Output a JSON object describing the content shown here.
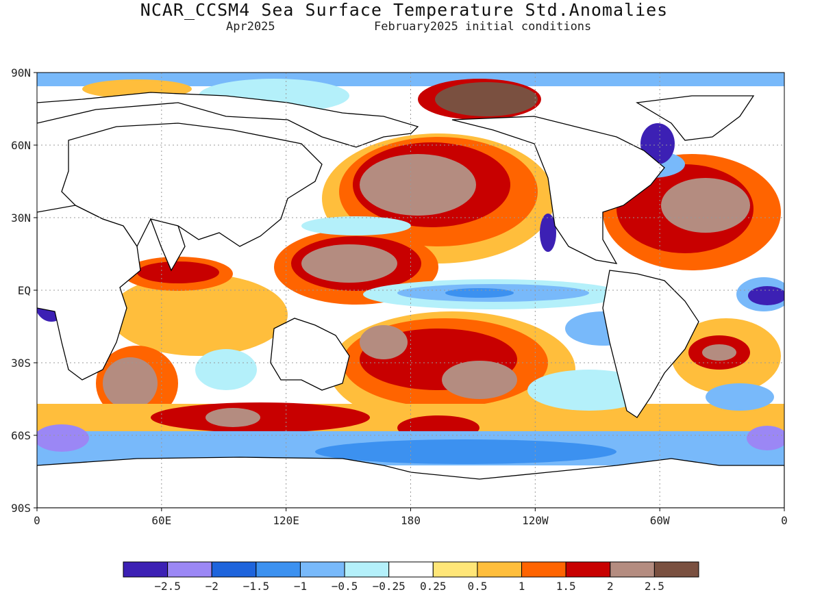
{
  "title": "NCAR_CCSM4 Sea Surface Temperature Std.Anomalies",
  "subtitle_left": "Apr2025",
  "subtitle_right": "February2025 initial conditions",
  "lat_labels": [
    "90N",
    "60N",
    "30N",
    "EQ",
    "30S",
    "60S",
    "90S"
  ],
  "lon_labels": [
    "0",
    "60E",
    "120E",
    "180",
    "120W",
    "60W",
    "0"
  ],
  "colorbar": {
    "colors": [
      "#3c20b4",
      "#9b87f5",
      "#1e64dc",
      "#3c91f0",
      "#78b9fa",
      "#b4f0fa",
      "#ffffff",
      "#ffe678",
      "#ffbe3c",
      "#ff6400",
      "#c80000",
      "#b48c80",
      "#7a5040"
    ],
    "labels": [
      "-2.5",
      "-2",
      "-1.5",
      "-1",
      "-0.5",
      "-0.25",
      "0.25",
      "0.5",
      "1",
      "1.5",
      "2",
      "2.5"
    ]
  },
  "colors": {
    "land": "#ffffff",
    "coast": "#000000",
    "grid": "#999999"
  }
}
